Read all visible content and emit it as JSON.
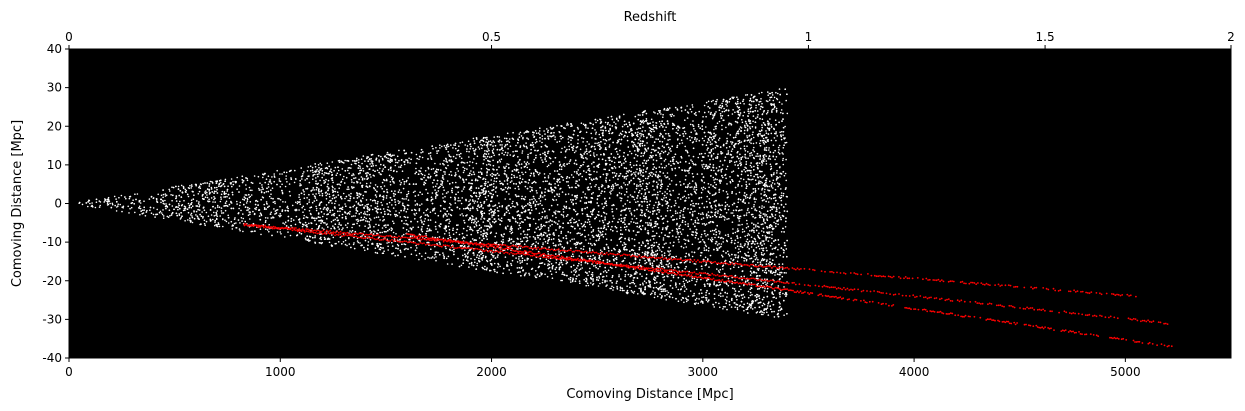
{
  "chart_data": {
    "type": "scatter",
    "title": "",
    "xlabel": "Comoving Distance [Mpc]",
    "ylabel": "Comoving Distance [Mpc]",
    "top_xlabel": "Redshift",
    "xlim": [
      0,
      5500
    ],
    "ylim": [
      -40,
      40
    ],
    "background": "#000000",
    "x_ticks": [
      0,
      1000,
      2000,
      3000,
      4000,
      5000
    ],
    "y_ticks": [
      -40,
      -30,
      -20,
      -10,
      0,
      10,
      20,
      30,
      40
    ],
    "top_ticks": [
      {
        "label": "0",
        "x": 0
      },
      {
        "label": "0.5",
        "x": 2000
      },
      {
        "label": "1",
        "x": 3500
      },
      {
        "label": "1.5",
        "x": 4620
      },
      {
        "label": "2",
        "x": 5500
      }
    ],
    "galaxies": {
      "color": "#ffffff",
      "cone_apex": [
        0,
        0
      ],
      "cone_end_x": 3400,
      "cone_upper_at_end": 30,
      "cone_lower_at_end": -30,
      "count": 9000
    },
    "sightlines": {
      "color": "#ff0000",
      "lines": [
        {
          "x_start": 830,
          "y_start": -5.5,
          "x_end": 5050,
          "y_end": -24
        },
        {
          "x_start": 1600,
          "y_start": -8,
          "x_end": 5220,
          "y_end": -37
        },
        {
          "x_start": 830,
          "y_start": -5.5,
          "x_end": 5200,
          "y_end": -31
        }
      ]
    }
  }
}
